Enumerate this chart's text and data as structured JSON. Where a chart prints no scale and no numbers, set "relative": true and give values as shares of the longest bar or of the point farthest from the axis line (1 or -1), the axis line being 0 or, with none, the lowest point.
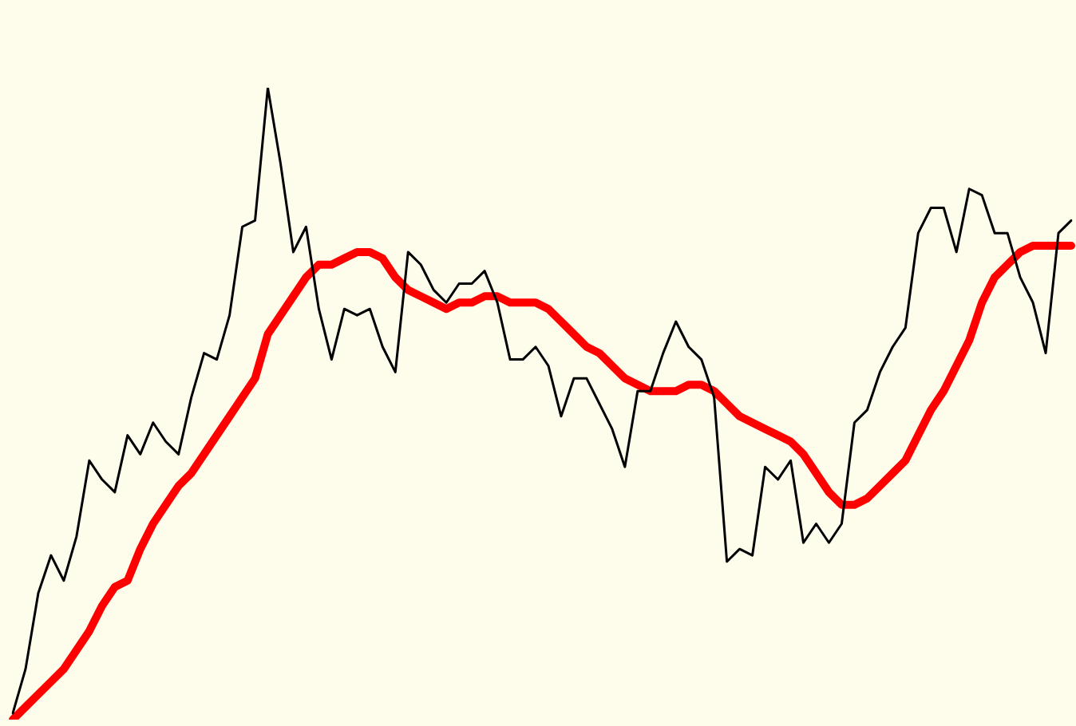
{
  "chart_data": {
    "type": "line",
    "relative": true,
    "categories": [
      null,
      null,
      null,
      null,
      null,
      null,
      null,
      null,
      null,
      null,
      null,
      null,
      null,
      null,
      null,
      null,
      null,
      null,
      null,
      null,
      null,
      null,
      null,
      null,
      null,
      null,
      null,
      null,
      null,
      null,
      null,
      null,
      null,
      null,
      null,
      null,
      null,
      null,
      null,
      null,
      null,
      null,
      null,
      null,
      null,
      null,
      null,
      null,
      null,
      null,
      null,
      null,
      null,
      null,
      null,
      null,
      null,
      null,
      null,
      null,
      null,
      null,
      null,
      null,
      null,
      null,
      null,
      null,
      null,
      null,
      null,
      null,
      null,
      null,
      null,
      null,
      null,
      null,
      null,
      null,
      null,
      null,
      null,
      null
    ],
    "series": [
      {
        "color": "#000000",
        "values": [
          0.01,
          0.08,
          0.2,
          0.26,
          0.22,
          0.29,
          0.41,
          0.38,
          0.36,
          0.45,
          0.42,
          0.47,
          0.44,
          0.42,
          0.51,
          0.58,
          0.57,
          0.64,
          0.78,
          0.79,
          1,
          0.88,
          0.74,
          0.78,
          0.65,
          0.57,
          0.65,
          0.64,
          0.65,
          0.59,
          0.55,
          0.74,
          0.72,
          0.68,
          0.66,
          0.69,
          0.69,
          0.71,
          0.66,
          0.57,
          0.57,
          0.59,
          0.56,
          0.48,
          0.54,
          0.54,
          0.5,
          0.46,
          0.4,
          0.52,
          0.52,
          0.58,
          0.63,
          0.59,
          0.57,
          0.51,
          0.25,
          0.27,
          0.26,
          0.4,
          0.38,
          0.41,
          0.28,
          0.31,
          0.28,
          0.31,
          0.47,
          0.49,
          0.55,
          0.59,
          0.62,
          0.77,
          0.81,
          0.81,
          0.74,
          0.84,
          0.83,
          0.77,
          0.77,
          0.7,
          0.66,
          0.58,
          0.77,
          0.79
        ]
      },
      {
        "color": "#ff0000",
        "values": [
          0,
          0.02,
          0.04,
          0.06,
          0.08,
          0.11,
          0.14,
          0.18,
          0.21,
          0.22,
          0.27,
          0.31,
          0.34,
          0.37,
          0.39,
          0.42,
          0.45,
          0.48,
          0.51,
          0.54,
          0.61,
          0.64,
          0.67,
          0.7,
          0.72,
          0.72,
          0.73,
          0.74,
          0.74,
          0.73,
          0.7,
          0.68,
          0.67,
          0.66,
          0.65,
          0.66,
          0.66,
          0.67,
          0.67,
          0.66,
          0.66,
          0.66,
          0.65,
          0.63,
          0.61,
          0.59,
          0.58,
          0.56,
          0.54,
          0.53,
          0.52,
          0.52,
          0.52,
          0.53,
          0.53,
          0.52,
          0.5,
          0.48,
          0.47,
          0.46,
          0.45,
          0.44,
          0.42,
          0.39,
          0.36,
          0.34,
          0.34,
          0.35,
          0.37,
          0.39,
          0.41,
          0.45,
          0.49,
          0.52,
          0.56,
          0.6,
          0.66,
          0.7,
          0.72,
          0.74,
          0.75,
          0.75,
          0.75,
          0.75
        ]
      }
    ]
  }
}
